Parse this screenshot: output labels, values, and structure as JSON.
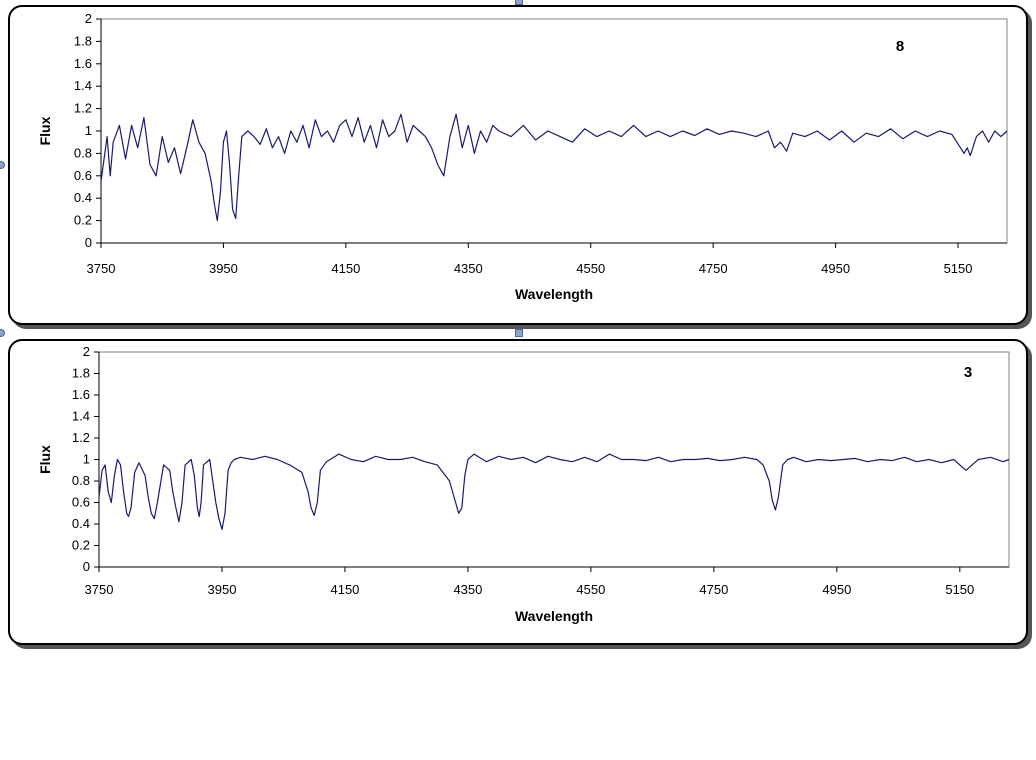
{
  "chart_data": [
    {
      "type": "line",
      "title": "",
      "panel_label": "8",
      "xlabel": "Wavelength",
      "ylabel": "Flux",
      "xlim": [
        3750,
        5230
      ],
      "ylim": [
        0,
        2
      ],
      "xticks": [
        "3750",
        "3950",
        "4150",
        "4350",
        "4550",
        "4750",
        "4950",
        "5150"
      ],
      "yticks": [
        "0",
        "0.2",
        "0.4",
        "0.6",
        "0.8",
        "1",
        "1.2",
        "1.4",
        "1.6",
        "1.8",
        "2"
      ],
      "grid": false,
      "line_color": "#1a1a6e",
      "series": [
        {
          "x": [
            3750,
            3760,
            3765,
            3770,
            3780,
            3790,
            3800,
            3810,
            3820,
            3830,
            3840,
            3850,
            3860,
            3870,
            3880,
            3890,
            3900,
            3910,
            3920,
            3930,
            3935,
            3940,
            3945,
            3950,
            3955,
            3960,
            3965,
            3970,
            3975,
            3980,
            3990,
            4000,
            4010,
            4020,
            4030,
            4040,
            4050,
            4060,
            4070,
            4080,
            4090,
            4100,
            4110,
            4120,
            4130,
            4140,
            4150,
            4160,
            4170,
            4180,
            4190,
            4200,
            4210,
            4220,
            4230,
            4240,
            4250,
            4260,
            4270,
            4280,
            4290,
            4300,
            4310,
            4320,
            4330,
            4340,
            4350,
            4360,
            4370,
            4380,
            4390,
            4400,
            4420,
            4440,
            4460,
            4480,
            4500,
            4520,
            4540,
            4560,
            4580,
            4600,
            4620,
            4640,
            4660,
            4680,
            4700,
            4720,
            4740,
            4760,
            4780,
            4800,
            4820,
            4840,
            4850,
            4860,
            4870,
            4880,
            4900,
            4920,
            4940,
            4960,
            4980,
            5000,
            5020,
            5040,
            5060,
            5080,
            5100,
            5120,
            5140,
            5160,
            5165,
            5170,
            5180,
            5190,
            5200,
            5210,
            5220,
            5230
          ],
          "y": [
            0.55,
            0.95,
            0.6,
            0.9,
            1.05,
            0.75,
            1.05,
            0.85,
            1.12,
            0.7,
            0.6,
            0.95,
            0.72,
            0.85,
            0.62,
            0.85,
            1.1,
            0.9,
            0.8,
            0.55,
            0.35,
            0.2,
            0.45,
            0.9,
            1.0,
            0.7,
            0.3,
            0.22,
            0.6,
            0.95,
            1.0,
            0.95,
            0.88,
            1.02,
            0.85,
            0.95,
            0.8,
            1.0,
            0.9,
            1.05,
            0.85,
            1.1,
            0.95,
            1.0,
            0.9,
            1.05,
            1.1,
            0.95,
            1.12,
            0.9,
            1.05,
            0.85,
            1.1,
            0.95,
            1.0,
            1.15,
            0.9,
            1.05,
            1.0,
            0.95,
            0.85,
            0.7,
            0.6,
            0.95,
            1.15,
            0.85,
            1.05,
            0.8,
            1.0,
            0.9,
            1.05,
            1.0,
            0.95,
            1.05,
            0.92,
            1.0,
            0.95,
            0.9,
            1.02,
            0.95,
            1.0,
            0.95,
            1.05,
            0.95,
            1.0,
            0.95,
            1.0,
            0.96,
            1.02,
            0.97,
            1.0,
            0.98,
            0.95,
            1.0,
            0.85,
            0.9,
            0.82,
            0.98,
            0.95,
            1.0,
            0.92,
            1.0,
            0.9,
            0.98,
            0.95,
            1.02,
            0.93,
            1.0,
            0.95,
            1.0,
            0.97,
            0.8,
            0.85,
            0.78,
            0.95,
            1.0,
            0.9,
            1.0,
            0.95,
            1.0
          ]
        }
      ]
    },
    {
      "type": "line",
      "title": "",
      "panel_label": "3",
      "xlabel": "Wavelength",
      "ylabel": "Flux",
      "xlim": [
        3750,
        5230
      ],
      "ylim": [
        0,
        2
      ],
      "xticks": [
        "3750",
        "3950",
        "4150",
        "4350",
        "4550",
        "4750",
        "4950",
        "5150"
      ],
      "yticks": [
        "0",
        "0.2",
        "0.4",
        "0.6",
        "0.8",
        "1",
        "1.2",
        "1.4",
        "1.6",
        "1.8",
        "2"
      ],
      "grid": false,
      "line_color": "#1a1a6e",
      "series": [
        {
          "x": [
            3750,
            3755,
            3760,
            3765,
            3770,
            3775,
            3780,
            3785,
            3790,
            3795,
            3798,
            3802,
            3808,
            3815,
            3825,
            3830,
            3835,
            3840,
            3845,
            3855,
            3865,
            3870,
            3875,
            3880,
            3885,
            3890,
            3900,
            3905,
            3910,
            3913,
            3916,
            3920,
            3930,
            3940,
            3945,
            3950,
            3955,
            3960,
            3965,
            3970,
            3980,
            4000,
            4020,
            4040,
            4060,
            4080,
            4090,
            4095,
            4100,
            4105,
            4110,
            4120,
            4140,
            4160,
            4180,
            4200,
            4220,
            4240,
            4260,
            4280,
            4300,
            4320,
            4330,
            4335,
            4340,
            4345,
            4350,
            4360,
            4380,
            4400,
            4420,
            4440,
            4460,
            4480,
            4500,
            4520,
            4540,
            4560,
            4580,
            4600,
            4620,
            4640,
            4660,
            4680,
            4700,
            4720,
            4740,
            4760,
            4780,
            4800,
            4820,
            4830,
            4840,
            4845,
            4850,
            4855,
            4862,
            4870,
            4880,
            4900,
            4920,
            4940,
            4960,
            4980,
            5000,
            5020,
            5040,
            5060,
            5080,
            5100,
            5120,
            5140,
            5150,
            5160,
            5170,
            5180,
            5200,
            5220,
            5230
          ],
          "y": [
            0.65,
            0.9,
            0.95,
            0.7,
            0.6,
            0.85,
            1.0,
            0.95,
            0.7,
            0.5,
            0.47,
            0.55,
            0.88,
            0.97,
            0.85,
            0.65,
            0.5,
            0.45,
            0.6,
            0.95,
            0.9,
            0.7,
            0.55,
            0.42,
            0.6,
            0.95,
            1.0,
            0.85,
            0.55,
            0.47,
            0.6,
            0.95,
            1.0,
            0.6,
            0.45,
            0.35,
            0.5,
            0.9,
            0.97,
            1.0,
            1.02,
            1.0,
            1.03,
            1.0,
            0.95,
            0.88,
            0.7,
            0.55,
            0.48,
            0.6,
            0.9,
            0.98,
            1.05,
            1.0,
            0.98,
            1.03,
            1.0,
            1.0,
            1.02,
            0.98,
            0.95,
            0.8,
            0.6,
            0.5,
            0.55,
            0.85,
            1.0,
            1.05,
            0.98,
            1.03,
            1.0,
            1.02,
            0.97,
            1.03,
            1.0,
            0.98,
            1.02,
            0.98,
            1.05,
            1.0,
            1.0,
            0.99,
            1.02,
            0.98,
            1.0,
            1.0,
            1.01,
            0.99,
            1.0,
            1.02,
            1.0,
            0.95,
            0.8,
            0.62,
            0.53,
            0.65,
            0.95,
            1.0,
            1.02,
            0.98,
            1.0,
            0.99,
            1.0,
            1.01,
            0.98,
            1.0,
            0.99,
            1.02,
            0.98,
            1.0,
            0.97,
            1.0,
            0.95,
            0.9,
            0.95,
            1.0,
            1.02,
            0.98,
            1.0
          ]
        }
      ]
    }
  ]
}
